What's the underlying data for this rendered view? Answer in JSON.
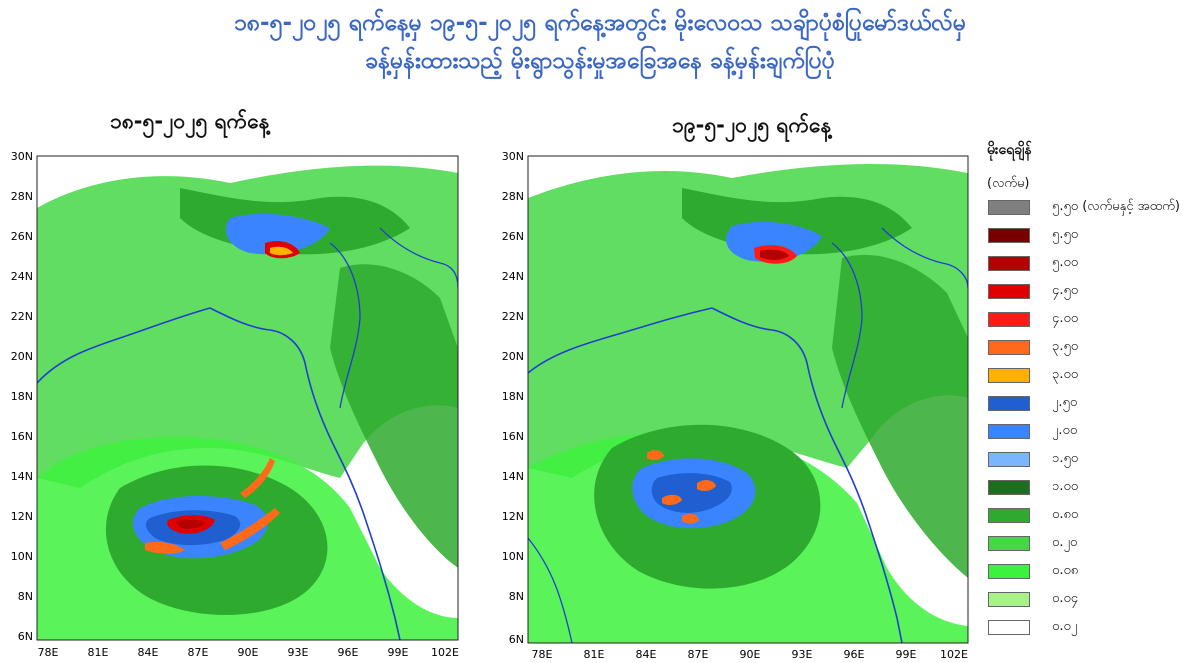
{
  "title_line1": "၁၈-၅-၂၀၂၅ ရက်နေ့မှ ၁၉-၅-၂၀၂၅ ရက်နေ့အတွင်း မိုးလေဝသ သချိာပုံစံပြုမော်ဒယ်လ်မှ",
  "title_line2": "ခန့်မှန်းထားသည့် မိုးရွာသွန်းမှုအခြေအနေ ခန့်မှန်းချက်ပြပုံ",
  "maps": [
    {
      "subtitle": "၁၈-၅-၂၀၂၅ ရက်နေ့"
    },
    {
      "subtitle": "၁၉-၅-၂၀၂၅ ရက်နေ့"
    }
  ],
  "axes": {
    "lat_ticks": [
      "30N",
      "28N",
      "26N",
      "24N",
      "22N",
      "20N",
      "18N",
      "16N",
      "14N",
      "12N",
      "10N",
      "8N",
      "6N"
    ],
    "lon_ticks": [
      "78E",
      "81E",
      "84E",
      "87E",
      "90E",
      "93E",
      "96E",
      "99E",
      "102E"
    ]
  },
  "legend": {
    "title": "မိုးရေချိန်",
    "unit": "(လက်မ)",
    "items": [
      {
        "label": "၅.၅၀ (လက်မနှင့် အထက်)",
        "color": "#7f7f7f"
      },
      {
        "label": "၅.၅၀",
        "color": "#7a0000"
      },
      {
        "label": "၅.၀၀",
        "color": "#b30000"
      },
      {
        "label": "၄.၅၀",
        "color": "#e00000"
      },
      {
        "label": "၄.၀၀",
        "color": "#ff1a1a"
      },
      {
        "label": "၃.၅၀",
        "color": "#ff6a1a"
      },
      {
        "label": "၃.၀၀",
        "color": "#ffb000"
      },
      {
        "label": "၂.၅၀",
        "color": "#1f5fd0"
      },
      {
        "label": "၂.၀၀",
        "color": "#3a85ff"
      },
      {
        "label": "၁.၅၀",
        "color": "#7ab6ff"
      },
      {
        "label": "၁.၀၀",
        "color": "#1f6e1f"
      },
      {
        "label": "၀.၈၀",
        "color": "#2eaa2e"
      },
      {
        "label": "၀.၂၀",
        "color": "#45d845"
      },
      {
        "label": "၀.၀၈",
        "color": "#3df23d"
      },
      {
        "label": "၀.၀၄",
        "color": "#a9f28a"
      },
      {
        "label": "၀.၀၂",
        "color": "#ffffff"
      }
    ]
  }
}
